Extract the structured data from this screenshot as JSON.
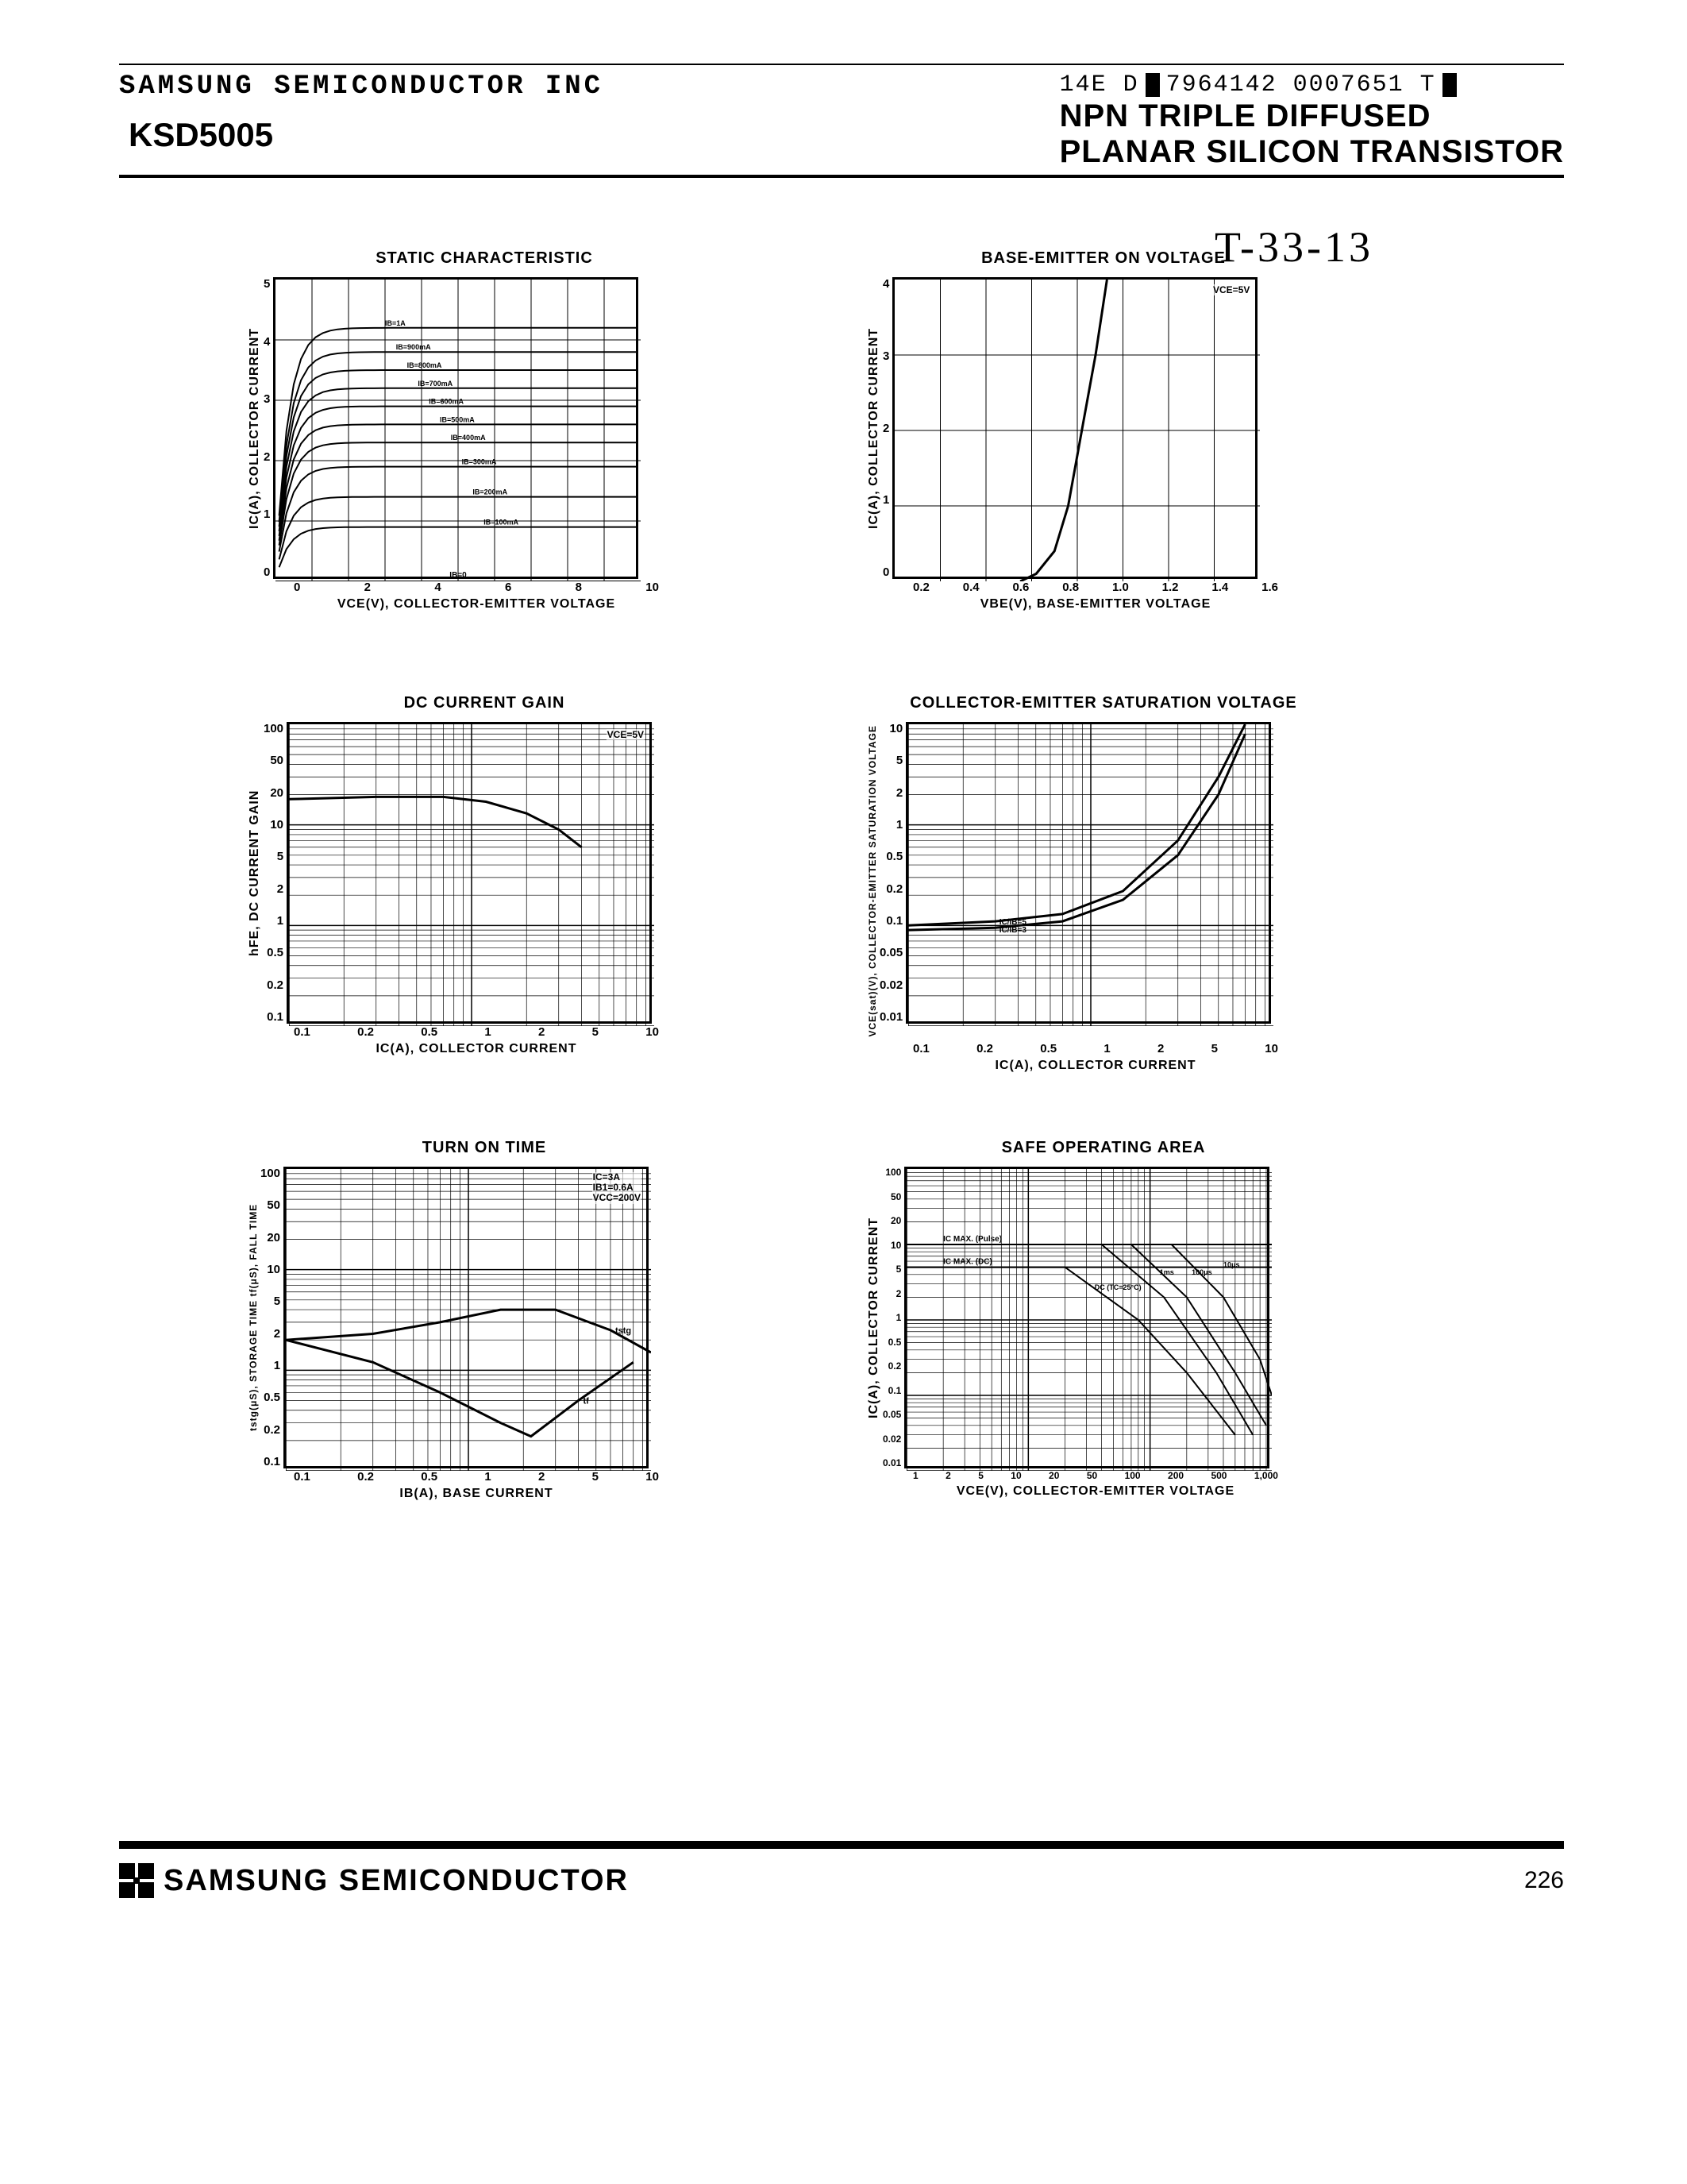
{
  "header": {
    "company": "SAMSUNG SEMICONDUCTOR INC",
    "partno": "KSD5005",
    "docid_pre": "14E D",
    "docid_mid": "7964142 0007651 T",
    "title1": "NPN TRIPLE DIFFUSED",
    "title2": "PLANAR SILICON TRANSISTOR",
    "handwritten": "T-33-13"
  },
  "footer": {
    "brand": "SAMSUNG SEMICONDUCTOR",
    "page": "226"
  },
  "charts": {
    "static": {
      "title": "STATIC CHARACTERISTIC",
      "ylabel": "IC(A), COLLECTOR CURRENT",
      "xlabel": "VCE(V), COLLECTOR-EMITTER VOLTAGE",
      "yticks": [
        "5",
        "4",
        "3",
        "2",
        "1",
        "0"
      ],
      "xticks": [
        "0",
        "2",
        "4",
        "6",
        "8",
        "10"
      ],
      "xlim": [
        0,
        10
      ],
      "ylim": [
        0,
        5
      ],
      "grid_step_x": 1,
      "grid_step_y": 1,
      "curve_labels": [
        "IB=1A",
        "IB=900mA",
        "IB=800mA",
        "IB=700mA",
        "IB=600mA",
        "IB=500mA",
        "IB=400mA",
        "IB=300mA",
        "IB=200mA",
        "IB=100mA",
        "IB=0"
      ],
      "curve_plateau_y": [
        4.2,
        3.8,
        3.5,
        3.2,
        2.9,
        2.6,
        2.3,
        1.9,
        1.4,
        0.9,
        0.0
      ],
      "line_color": "#000000",
      "line_width": 2,
      "grid_color": "#000000",
      "bg": "#ffffff"
    },
    "vbe": {
      "title": "BASE-EMITTER ON VOLTAGE",
      "ylabel": "IC(A), COLLECTOR CURRENT",
      "xlabel": "VBE(V), BASE-EMITTER VOLTAGE",
      "yticks": [
        "4",
        "3",
        "2",
        "1",
        "0"
      ],
      "xticks": [
        "0.2",
        "0.4",
        "0.6",
        "0.8",
        "1.0",
        "1.2",
        "1.4",
        "1.6"
      ],
      "xlim": [
        0,
        1.6
      ],
      "ylim": [
        0,
        4
      ],
      "cond": "VCE=5V",
      "curve_pts": [
        [
          0.55,
          0
        ],
        [
          0.62,
          0.1
        ],
        [
          0.7,
          0.4
        ],
        [
          0.76,
          1.0
        ],
        [
          0.82,
          2.0
        ],
        [
          0.88,
          3.0
        ],
        [
          0.93,
          4.0
        ]
      ],
      "line_color": "#000000",
      "line_width": 3,
      "grid_color": "#000000",
      "bg": "#ffffff"
    },
    "hfe": {
      "title": "DC CURRENT GAIN",
      "ylabel": "hFE, DC CURRENT GAIN",
      "xlabel": "IC(A), COLLECTOR CURRENT",
      "yticks": [
        "100",
        "50",
        "20",
        "10",
        "5",
        "2",
        "1",
        "0.5",
        "0.2",
        "0.1"
      ],
      "xticks": [
        "0.1",
        "0.2",
        "0.5",
        "1",
        "2",
        "5",
        "10"
      ],
      "xlog": [
        0.1,
        10
      ],
      "ylog": [
        0.1,
        100
      ],
      "cond": "VCE=5V",
      "curve_pts": [
        [
          0.1,
          18
        ],
        [
          0.3,
          19
        ],
        [
          0.7,
          19
        ],
        [
          1.2,
          17
        ],
        [
          2,
          13
        ],
        [
          3,
          9
        ],
        [
          4,
          6
        ]
      ],
      "line_color": "#000000",
      "line_width": 3,
      "grid_color": "#000000",
      "bg": "#ffffff"
    },
    "vcesat": {
      "title": "COLLECTOR-EMITTER SATURATION VOLTAGE",
      "ylabel": "VCE(sat)(V), COLLECTOR-EMITTER SATURATION VOLTAGE",
      "xlabel": "IC(A), COLLECTOR CURRENT",
      "yticks": [
        "10",
        "5",
        "2",
        "1",
        "0.5",
        "0.2",
        "0.1",
        "0.05",
        "0.02",
        "0.01"
      ],
      "xticks": [
        "0.1",
        "0.2",
        "0.5",
        "1",
        "2",
        "5",
        "10"
      ],
      "xlog": [
        0.1,
        10
      ],
      "ylog": [
        0.01,
        10
      ],
      "curves": [
        {
          "label": "IC/IB=5",
          "pts": [
            [
              0.1,
              0.09
            ],
            [
              0.3,
              0.095
            ],
            [
              0.7,
              0.11
            ],
            [
              1.5,
              0.18
            ],
            [
              3,
              0.5
            ],
            [
              5,
              2
            ],
            [
              7,
              8
            ]
          ]
        },
        {
          "label": "IC/IB=3",
          "pts": [
            [
              0.1,
              0.1
            ],
            [
              0.3,
              0.11
            ],
            [
              0.7,
              0.13
            ],
            [
              1.5,
              0.22
            ],
            [
              3,
              0.7
            ],
            [
              5,
              3
            ],
            [
              7,
              10
            ]
          ]
        }
      ],
      "line_color": "#000000",
      "line_width": 3,
      "grid_color": "#000000",
      "bg": "#ffffff"
    },
    "ton": {
      "title": "TURN ON TIME",
      "ylabel": "tstg(μS), STORAGE TIME   tf(μS), FALL TIME",
      "xlabel": "IB(A), BASE CURRENT",
      "yticks": [
        "100",
        "50",
        "20",
        "10",
        "5",
        "2",
        "1",
        "0.5",
        "0.2",
        "0.1"
      ],
      "xticks": [
        "0.1",
        "0.2",
        "0.5",
        "1",
        "2",
        "5",
        "10"
      ],
      "xlog": [
        0.1,
        10
      ],
      "ylog": [
        0.1,
        100
      ],
      "cond_lines": [
        "IC=3A",
        "IB1=0.6A",
        "VCC=200V"
      ],
      "curves": [
        {
          "label": "tstg",
          "pts": [
            [
              0.1,
              2.0
            ],
            [
              0.3,
              2.3
            ],
            [
              0.7,
              3.0
            ],
            [
              1.5,
              4.0
            ],
            [
              3,
              4.0
            ],
            [
              6,
              2.5
            ],
            [
              10,
              1.5
            ]
          ]
        },
        {
          "label": "tf",
          "pts": [
            [
              0.1,
              2.0
            ],
            [
              0.3,
              1.2
            ],
            [
              0.7,
              0.6
            ],
            [
              1.5,
              0.3
            ],
            [
              2.2,
              0.22
            ],
            [
              4,
              0.5
            ],
            [
              8,
              1.2
            ]
          ]
        }
      ],
      "line_color": "#000000",
      "line_width": 3,
      "grid_color": "#000000",
      "bg": "#ffffff"
    },
    "soa": {
      "title": "SAFE OPERATING AREA",
      "ylabel": "IC(A), COLLECTOR CURRENT",
      "xlabel": "VCE(V), COLLECTOR-EMITTER VOLTAGE",
      "yticks": [
        "100",
        "50",
        "20",
        "10",
        "5",
        "2",
        "1",
        "0.5",
        "0.2",
        "0.1",
        "0.05",
        "0.02",
        "0.01"
      ],
      "xticks": [
        "1",
        "2",
        "5",
        "10",
        "20",
        "50",
        "100",
        "200",
        "500",
        "1,000"
      ],
      "xlog": [
        1,
        1000
      ],
      "ylog": [
        0.01,
        100
      ],
      "labels": [
        "IC MAX. (Pulse)",
        "IC MAX. (DC)",
        "DC (TC=25°C)",
        "1ms",
        "100μs",
        "10μs"
      ],
      "ic_max_pulse": 10,
      "ic_max_dc": 5,
      "dc_line": [
        [
          1,
          5
        ],
        [
          20,
          5
        ],
        [
          80,
          1
        ],
        [
          200,
          0.2
        ],
        [
          500,
          0.03
        ]
      ],
      "p1ms": [
        [
          1,
          10
        ],
        [
          40,
          10
        ],
        [
          130,
          2
        ],
        [
          350,
          0.2
        ],
        [
          700,
          0.03
        ]
      ],
      "p100us": [
        [
          1,
          10
        ],
        [
          70,
          10
        ],
        [
          200,
          2
        ],
        [
          500,
          0.2
        ],
        [
          900,
          0.04
        ]
      ],
      "p10us": [
        [
          1,
          10
        ],
        [
          150,
          10
        ],
        [
          400,
          2
        ],
        [
          800,
          0.3
        ],
        [
          1000,
          0.1
        ]
      ],
      "line_color": "#000000",
      "line_width": 2,
      "grid_color": "#000000",
      "bg": "#ffffff"
    }
  }
}
